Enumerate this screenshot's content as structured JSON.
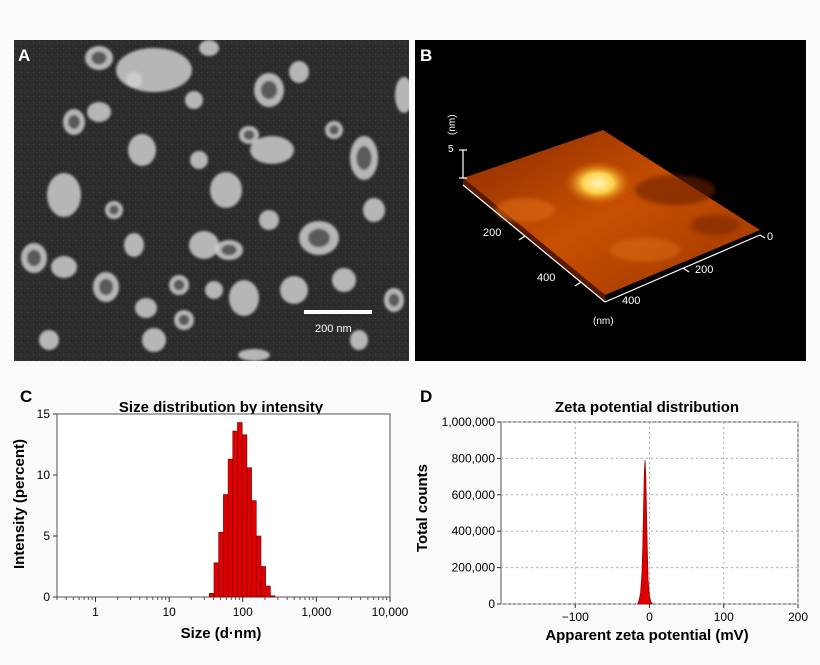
{
  "panels": {
    "a": {
      "letter": "A",
      "scale_bar_label": "200 nm"
    },
    "b": {
      "letter": "B",
      "z_unit": "(nm)",
      "z_tick": "5",
      "left_axis_ticks": [
        "200",
        "400"
      ],
      "right_axis_ticks": [
        "0",
        "200",
        "400"
      ],
      "axis_unit": "(nm)"
    },
    "c": {
      "letter": "C"
    },
    "d": {
      "letter": "D"
    }
  },
  "chart_data": [
    {
      "type": "bar",
      "title": "Size distribution by intensity",
      "xlabel": "Size (d·nm)",
      "ylabel": "Intensity (percent)",
      "x_scale": "log",
      "xlim": [
        0.3,
        10000
      ],
      "ylim": [
        0,
        15
      ],
      "xticks": [
        "1",
        "10",
        "100",
        "1,000",
        "10,000"
      ],
      "yticks": [
        "0",
        "5",
        "10",
        "15"
      ],
      "color": "#e00000",
      "x": [
        37.8,
        43.8,
        50.7,
        58.8,
        68.1,
        78.8,
        91.3,
        105.7,
        122.4,
        141.8,
        164.2,
        190.1,
        220.2,
        255.0
      ],
      "values": [
        0.3,
        2.8,
        5.3,
        8.4,
        11.3,
        13.6,
        14.3,
        13.3,
        10.6,
        7.9,
        5.0,
        2.5,
        0.9,
        0.1
      ]
    },
    {
      "type": "area",
      "title": "Zeta potential distribution",
      "xlabel": "Apparent zeta potential (mV)",
      "ylabel": "Total counts",
      "xlim": [
        -200,
        200
      ],
      "ylim": [
        0,
        1000000
      ],
      "xticks": [
        "−100",
        "0",
        "100",
        "200"
      ],
      "yticks": [
        "0",
        "200,000",
        "400,000",
        "600,000",
        "800,000",
        "1,000,000"
      ],
      "grid": true,
      "color": "#e00000",
      "x": [
        -16,
        -14,
        -12,
        -10,
        -9,
        -8,
        -7,
        -6,
        -5,
        -4,
        -3,
        -2,
        0,
        2,
        4
      ],
      "values": [
        0,
        20000,
        60000,
        180000,
        320000,
        520000,
        720000,
        790000,
        700000,
        500000,
        300000,
        140000,
        40000,
        10000,
        0
      ]
    }
  ]
}
